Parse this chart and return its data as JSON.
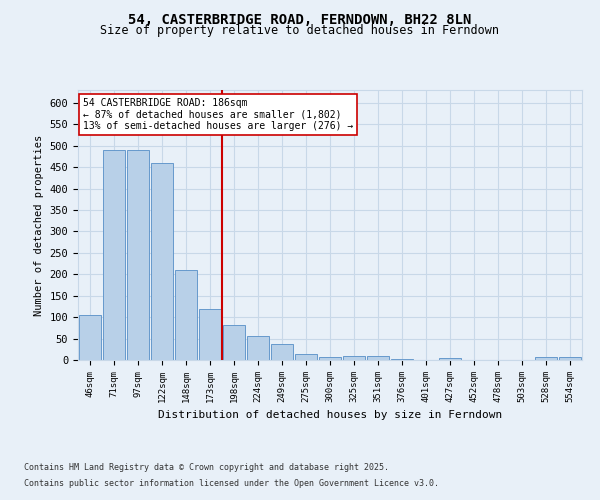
{
  "title_line1": "54, CASTERBRIDGE ROAD, FERNDOWN, BH22 8LN",
  "title_line2": "Size of property relative to detached houses in Ferndown",
  "xlabel": "Distribution of detached houses by size in Ferndown",
  "ylabel": "Number of detached properties",
  "categories": [
    "46sqm",
    "71sqm",
    "97sqm",
    "122sqm",
    "148sqm",
    "173sqm",
    "198sqm",
    "224sqm",
    "249sqm",
    "275sqm",
    "300sqm",
    "325sqm",
    "351sqm",
    "376sqm",
    "401sqm",
    "427sqm",
    "452sqm",
    "478sqm",
    "503sqm",
    "528sqm",
    "554sqm"
  ],
  "values": [
    105,
    490,
    490,
    460,
    210,
    120,
    82,
    57,
    38,
    13,
    8,
    10,
    10,
    3,
    0,
    5,
    0,
    0,
    0,
    6,
    6
  ],
  "bar_color": "#b8d0e8",
  "bar_edge_color": "#6699cc",
  "grid_color": "#c8d8e8",
  "background_color": "#e8f0f8",
  "vline_x": 5.5,
  "vline_color": "#cc0000",
  "annotation_text": "54 CASTERBRIDGE ROAD: 186sqm\n← 87% of detached houses are smaller (1,802)\n13% of semi-detached houses are larger (276) →",
  "annotation_box_color": "#ffffff",
  "annotation_border_color": "#cc0000",
  "footer_line1": "Contains HM Land Registry data © Crown copyright and database right 2025.",
  "footer_line2": "Contains public sector information licensed under the Open Government Licence v3.0.",
  "ylim": [
    0,
    630
  ],
  "yticks": [
    0,
    50,
    100,
    150,
    200,
    250,
    300,
    350,
    400,
    450,
    500,
    550,
    600
  ]
}
